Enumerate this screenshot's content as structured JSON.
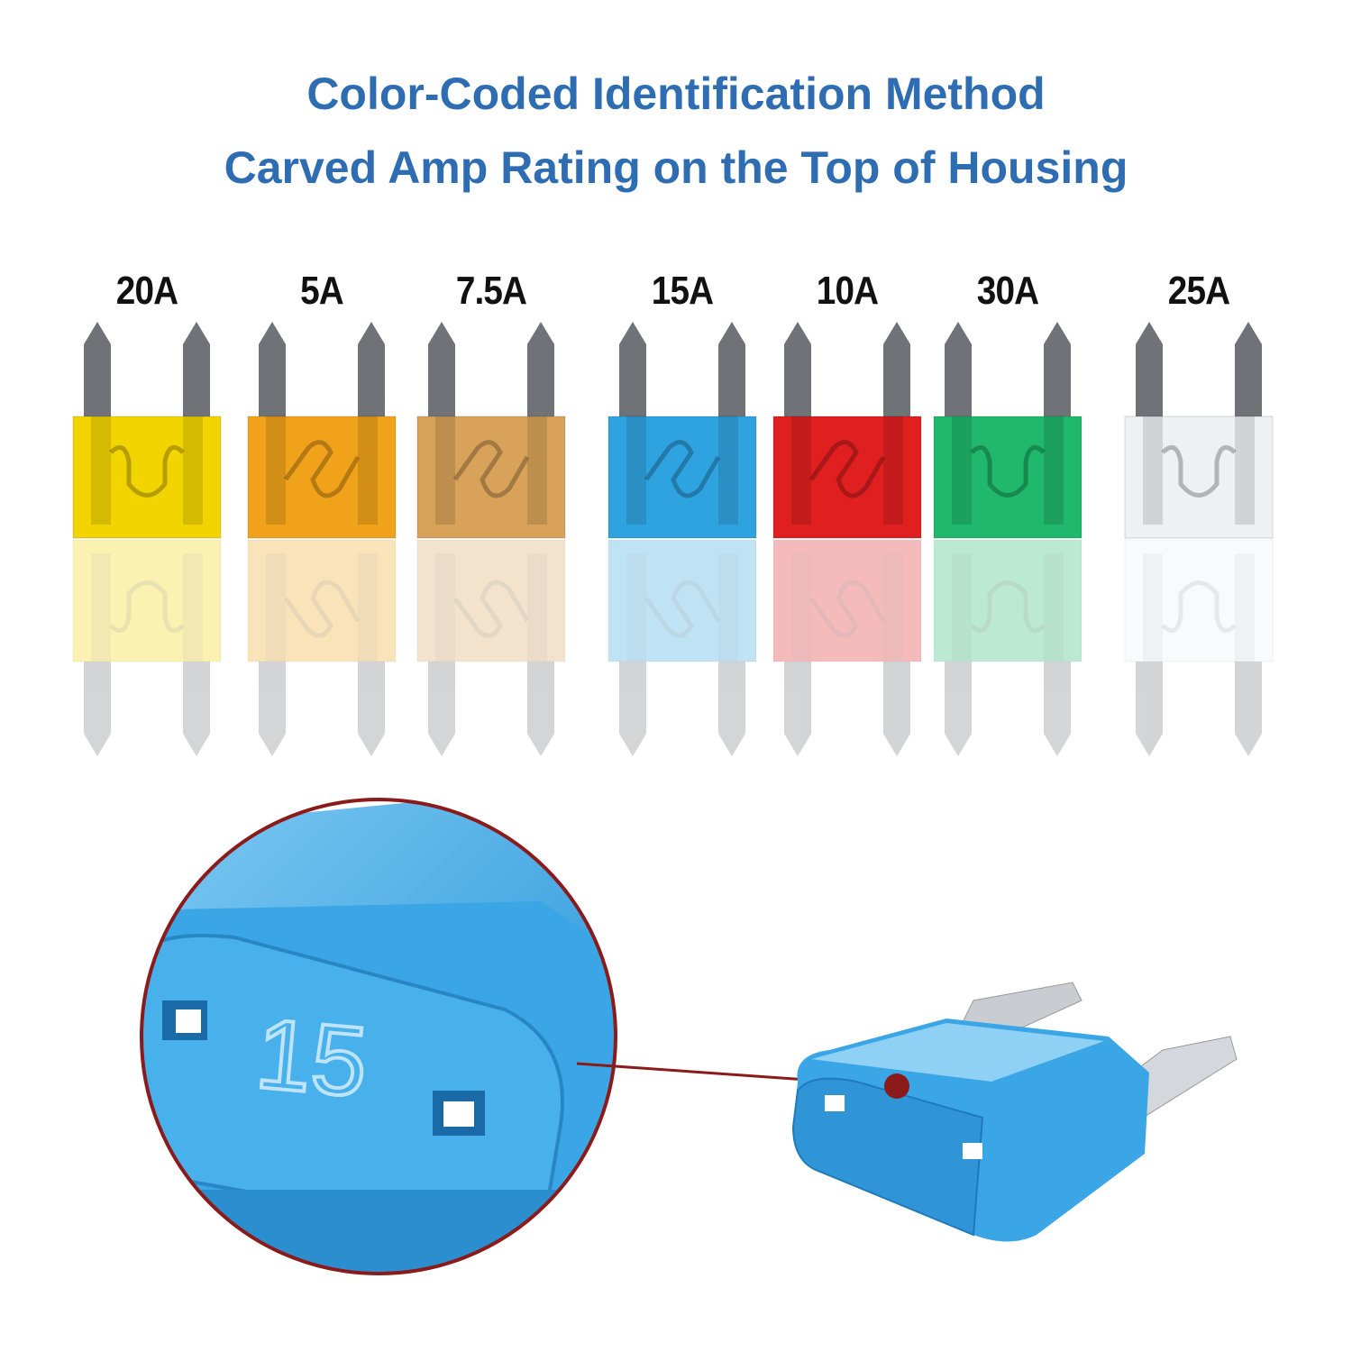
{
  "header": {
    "line1": "Color-Coded Identification Method",
    "line2": "Carved Amp Rating on the Top of Housing"
  },
  "fuses": [
    {
      "label": "20A",
      "color": "#f2d400",
      "fuse_shape": "U"
    },
    {
      "label": "5A",
      "color": "#f0a21a",
      "fuse_shape": "S"
    },
    {
      "label": "7.5A",
      "color": "#d9a25a",
      "fuse_shape": "S"
    },
    {
      "label": "15A",
      "color": "#2fa3e0",
      "fuse_shape": "S"
    },
    {
      "label": "10A",
      "color": "#e02020",
      "fuse_shape": "S"
    },
    {
      "label": "30A",
      "color": "#20b86a",
      "fuse_shape": "U"
    },
    {
      "label": "25A",
      "color": "#eef1f3",
      "fuse_shape": "U"
    }
  ],
  "closeup": {
    "carved_rating": "15",
    "housing_color": "#3aa6e6",
    "callout_color": "#8b1a1a"
  }
}
